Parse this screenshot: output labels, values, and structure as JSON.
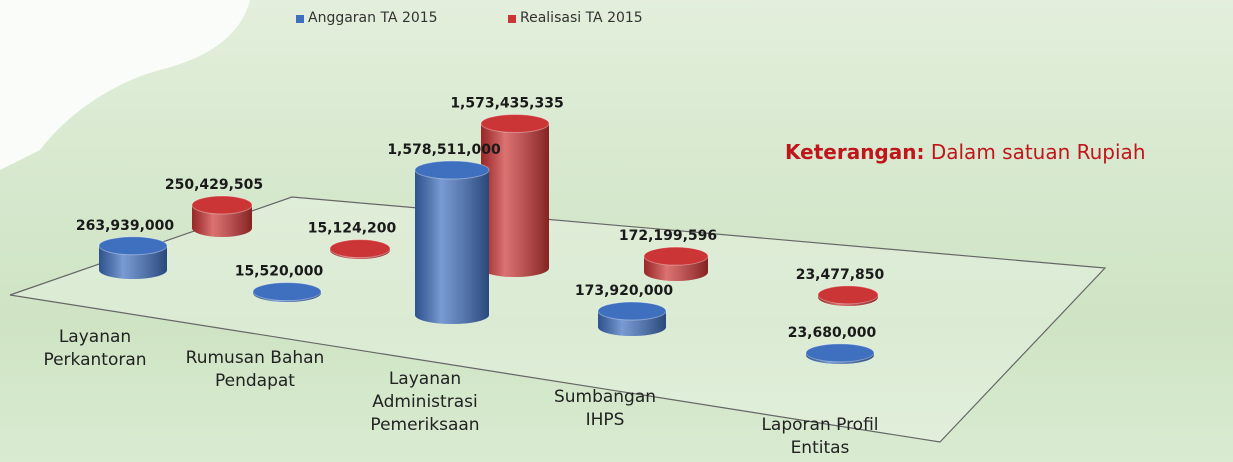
{
  "chart_data": {
    "type": "bar",
    "categories": [
      "Layanan Perkantoran",
      "Rumusan Bahan Pendapat",
      "Layanan Administrasi Pemeriksaan",
      "Sumbangan IHPS",
      "Laporan Profil Entitas"
    ],
    "series": [
      {
        "name": "Anggaran TA 2015",
        "color": "#3f6fbf",
        "values": [
          263939000,
          15520000,
          1578511000,
          173920000,
          23680000
        ],
        "value_labels": [
          "263,939,000",
          "15,520,000",
          "1,578,511,000",
          "173,920,000",
          "23,680,000"
        ]
      },
      {
        "name": "Realisasi TA 2015",
        "color": "#cc3535",
        "values": [
          250429505,
          15124200,
          1573435335,
          172199596,
          23477850
        ],
        "value_labels": [
          "250,429,505",
          "15,124,200",
          "1,573,435,335",
          "172,199,596",
          "23,477,850"
        ]
      }
    ],
    "annotation": {
      "label": "Keterangan:",
      "text": "Dalam satuan Rupiah"
    },
    "legend": "top"
  }
}
